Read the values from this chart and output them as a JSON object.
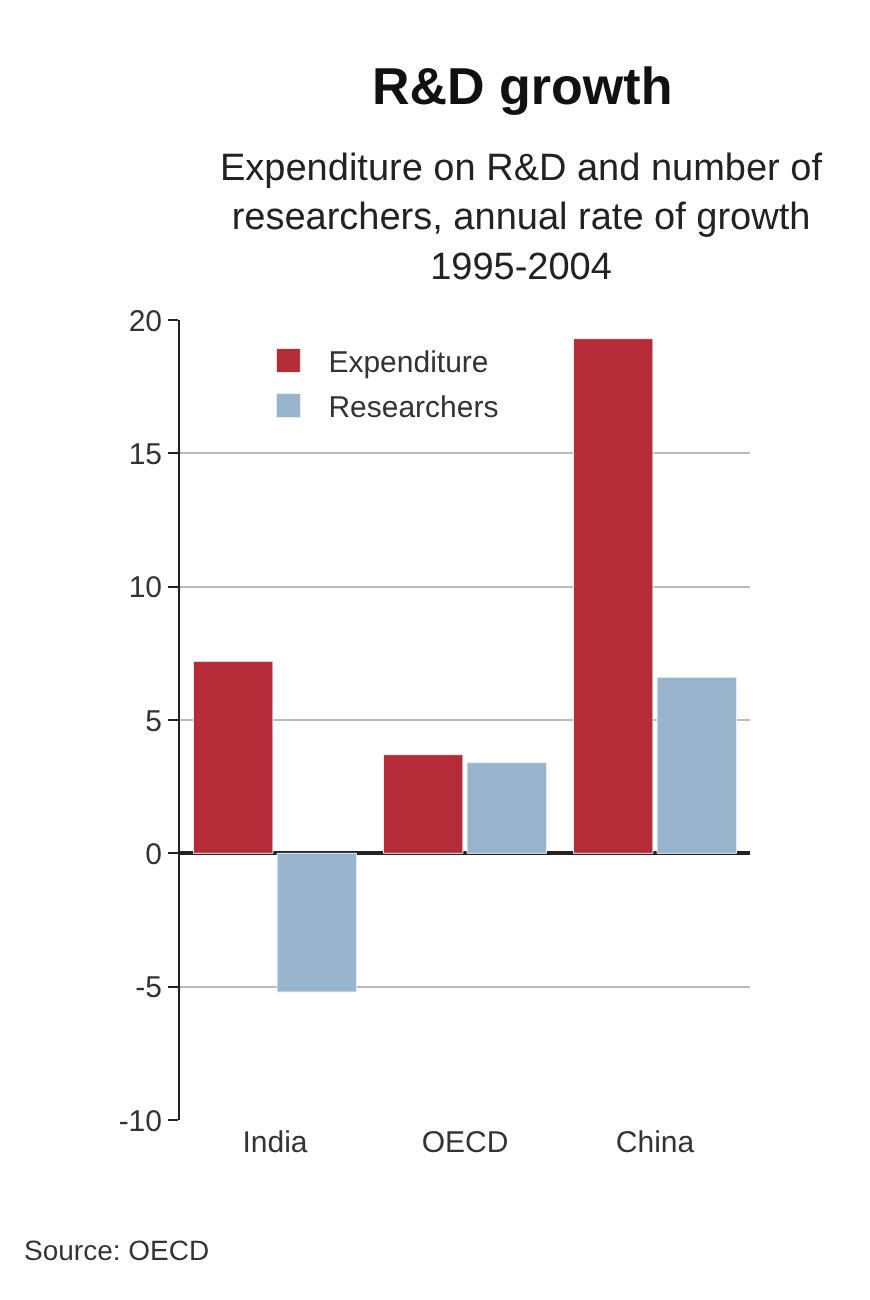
{
  "chart_data": {
    "type": "bar",
    "title": "R&D growth",
    "subtitle": "Expenditure on R&D and number of researchers, annual rate of growth 1995-2004",
    "categories": [
      "India",
      "OECD",
      "China"
    ],
    "series": [
      {
        "name": "Expenditure",
        "color": "#b52b38",
        "values": [
          7.2,
          3.7,
          19.3
        ]
      },
      {
        "name": "Researchers",
        "color": "#98b3cc",
        "values": [
          -5.2,
          3.4,
          6.6
        ]
      }
    ],
    "ylim": [
      -10,
      20
    ],
    "yticks": [
      -10,
      -5,
      0,
      5,
      10,
      15,
      20
    ],
    "grid": "y",
    "legend": "top left",
    "annotations": [
      "Source: OECD"
    ]
  }
}
